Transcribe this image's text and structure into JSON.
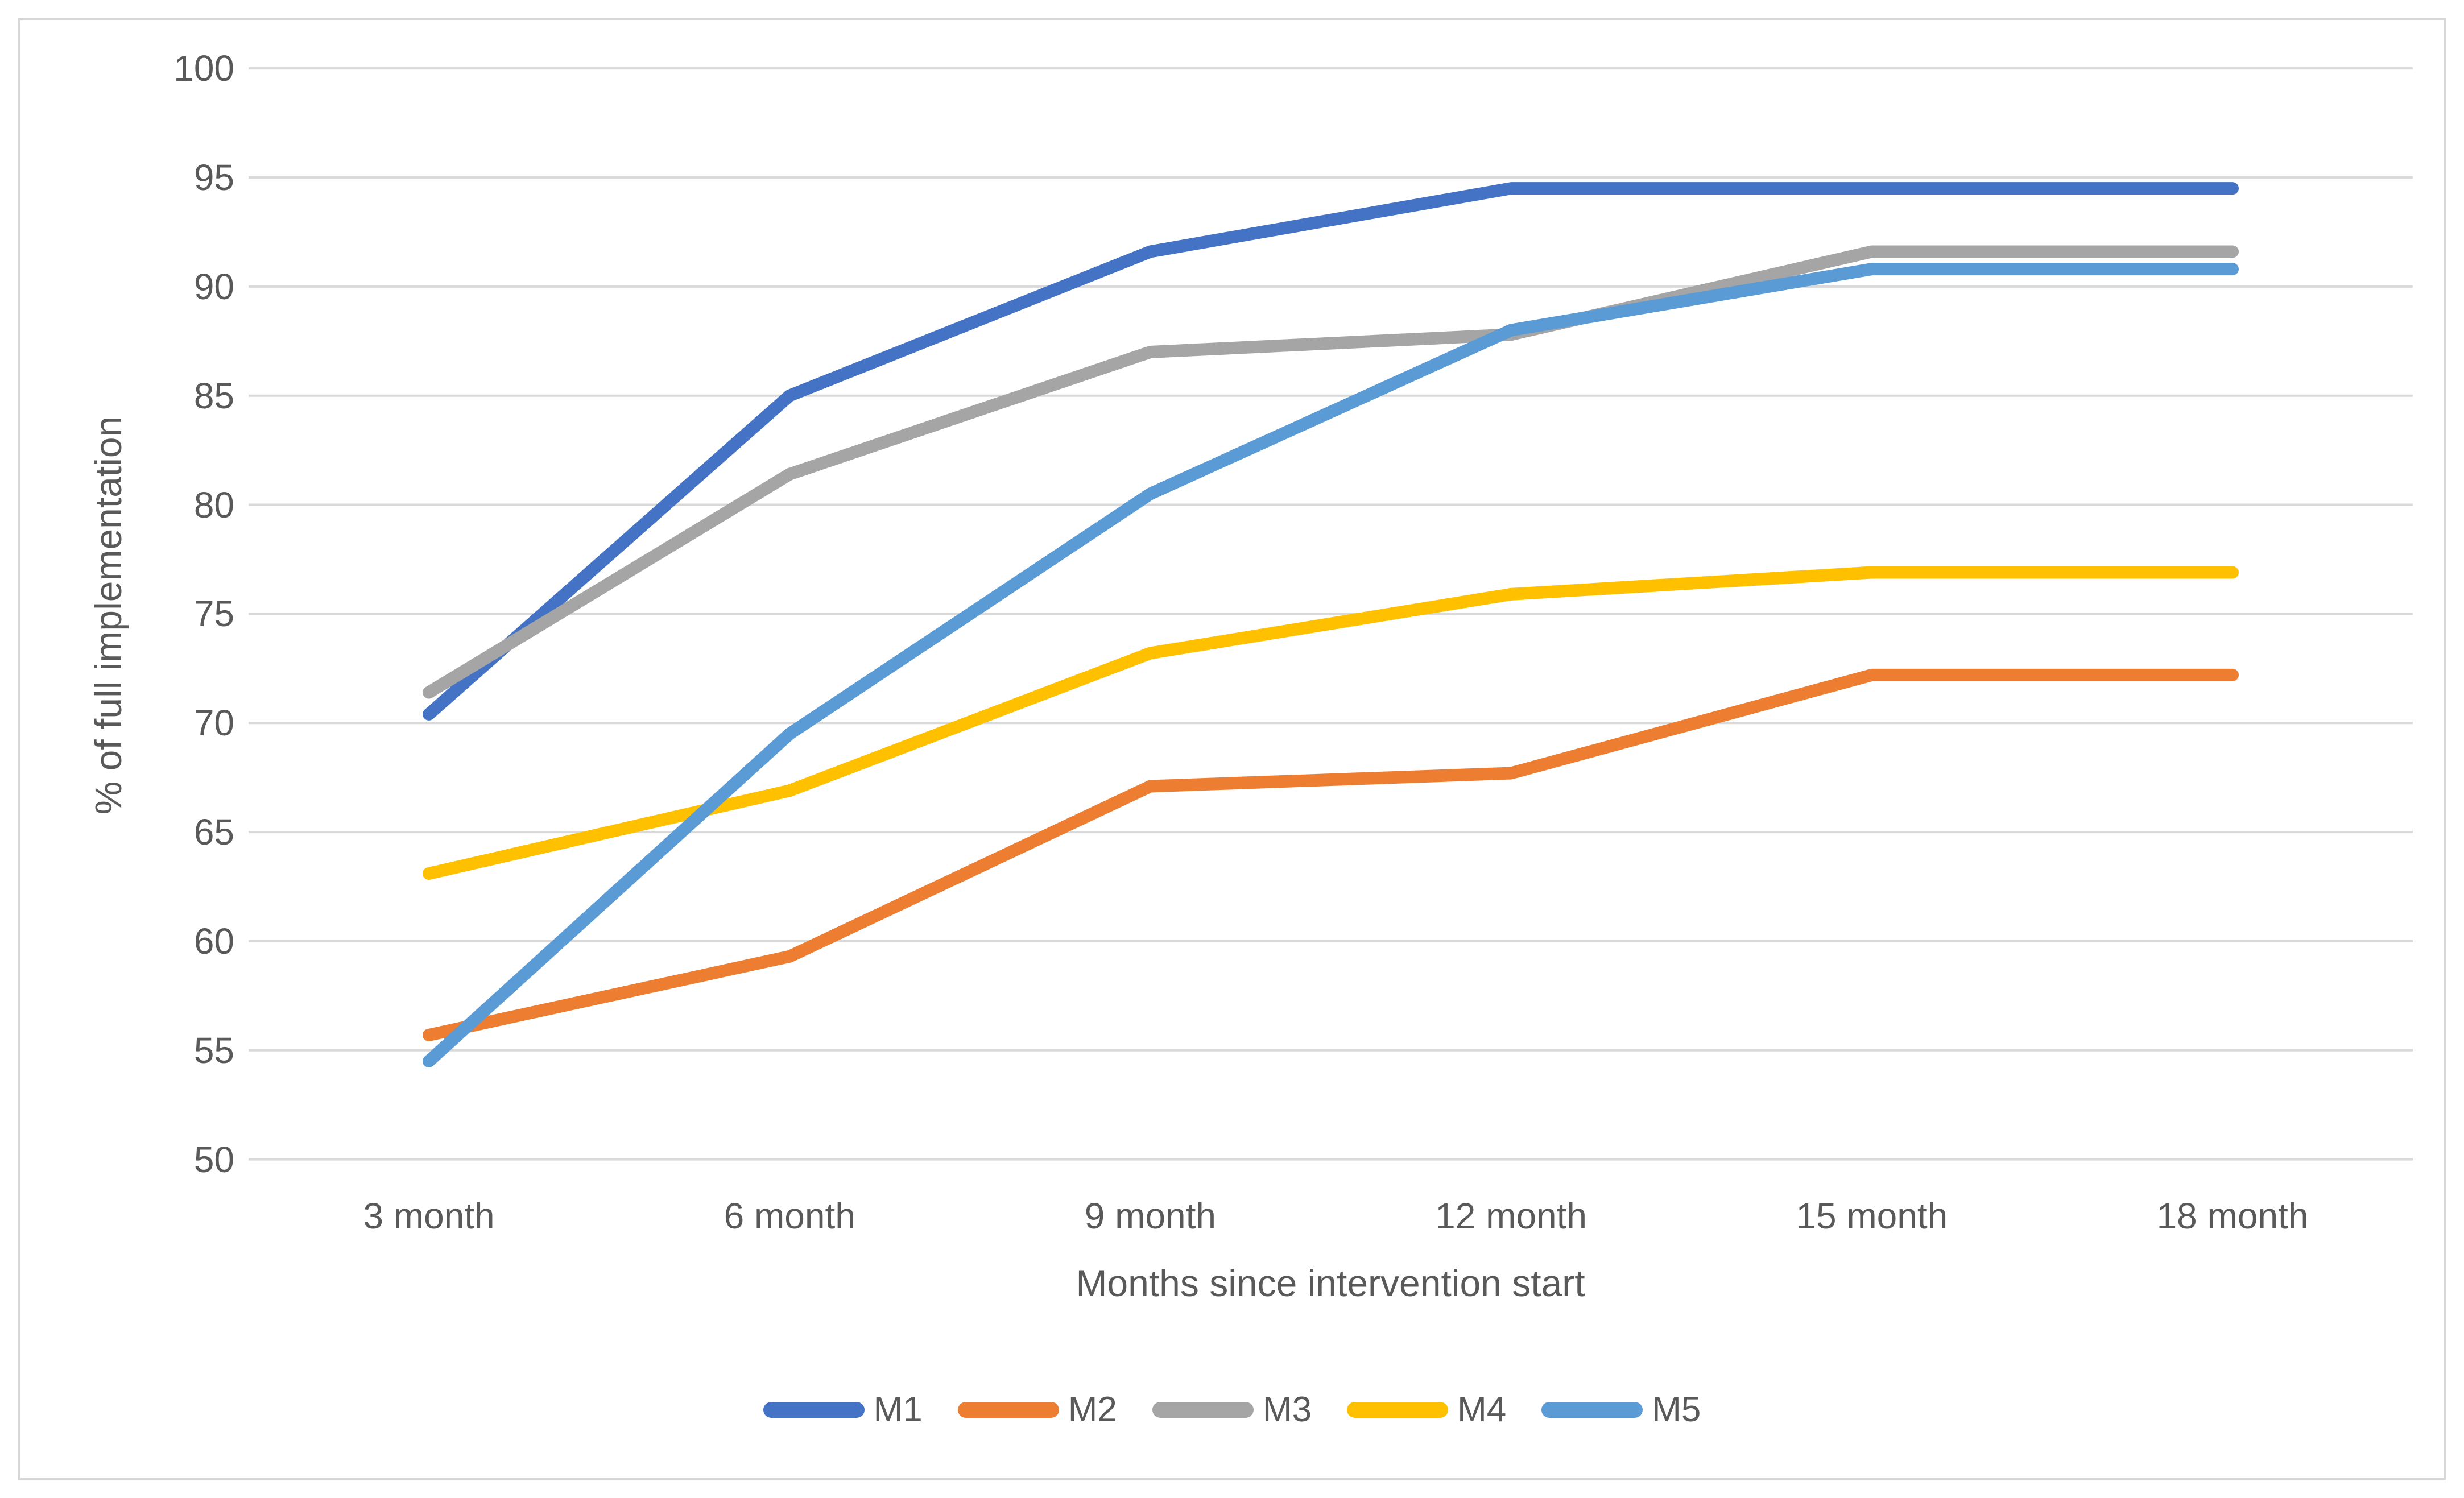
{
  "chart_data": {
    "type": "line",
    "title": "",
    "xlabel": "Months since intervention start",
    "ylabel": "% of full implementation",
    "categories": [
      "3 month",
      "6 month",
      "9 month",
      "12 month",
      "15 month",
      "18 month"
    ],
    "series": [
      {
        "name": "M1",
        "color": "#4472C4",
        "values": [
          70.4,
          85.0,
          91.6,
          94.5,
          94.5,
          94.5
        ]
      },
      {
        "name": "M2",
        "color": "#ED7D31",
        "values": [
          55.7,
          59.3,
          67.1,
          67.7,
          72.2,
          72.2
        ]
      },
      {
        "name": "M3",
        "color": "#A5A5A5",
        "values": [
          71.4,
          81.4,
          87.0,
          87.8,
          91.6,
          91.6
        ]
      },
      {
        "name": "M4",
        "color": "#FFC000",
        "values": [
          63.1,
          66.9,
          73.2,
          75.9,
          76.9,
          76.9
        ]
      },
      {
        "name": "M5",
        "color": "#5B9BD5",
        "values": [
          54.5,
          69.5,
          80.5,
          88.0,
          90.8,
          90.8
        ]
      }
    ],
    "ylim": [
      50,
      100
    ],
    "ytick_step": 5,
    "yticks": [
      100,
      95,
      90,
      85,
      80,
      75,
      70,
      65,
      60,
      55,
      50
    ],
    "grid": true,
    "legend_position": "bottom",
    "text_color": "#595959",
    "grid_color": "#D9D9D9",
    "border_color": "#D7D7D7",
    "background": "#FFFFFF"
  }
}
